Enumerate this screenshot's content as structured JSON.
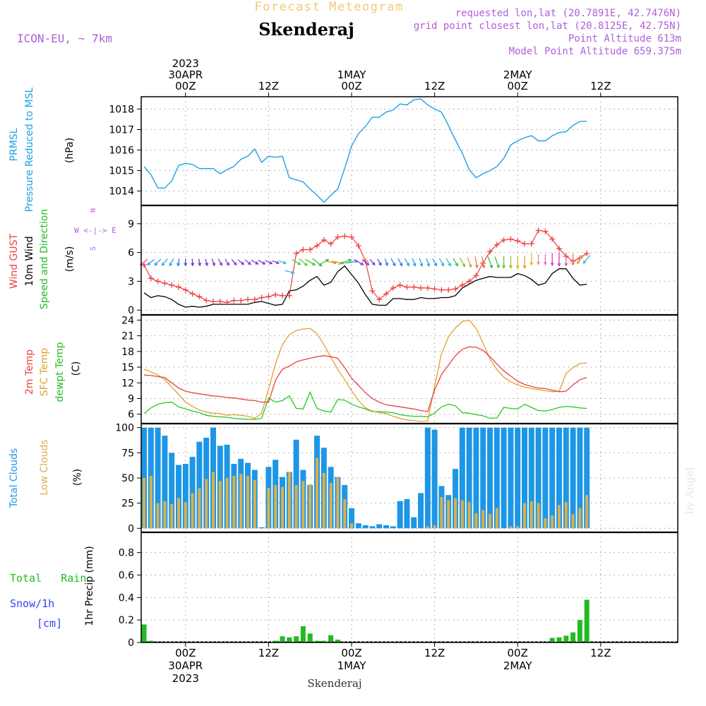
{
  "header": {
    "subtitle": "Forecast Meteogram",
    "location": "Skenderaj",
    "model": "ICON-EU, ~ 7km",
    "requested": "requested lon,lat (20.7891E, 42.7476N)",
    "gridpoint": "grid point closest lon,lat (20.8125E, 42.75N)",
    "point_altitude": "Point Altitude 613m",
    "model_altitude": "Model Point Altitude 659.375m",
    "footer_location": "Skenderaj",
    "watermark": "by Angel"
  },
  "colors": {
    "pressure": "#1ea0e6",
    "gust": "#ee4040",
    "wind": "#000000",
    "temp2m": "#ee4040",
    "sfc_temp": "#e0a030",
    "dewpt": "#22cc22",
    "total_clouds": "#1e96e6",
    "low_clouds": "#d8b050",
    "rain": "#22bb22",
    "snow": "#3344ee",
    "header_purple": "#b060d8",
    "header_orange": "#f4c878"
  },
  "chart_data": {
    "type": "meteogram",
    "x": {
      "start": "2023-04-29T18Z",
      "step_hours": 1,
      "count": 65,
      "top_ticks": [
        {
          "hour": 6,
          "lines": [
            "2023",
            "30APR",
            "00Z"
          ]
        },
        {
          "hour": 18,
          "lines": [
            "12Z"
          ]
        },
        {
          "hour": 30,
          "lines": [
            "1MAY",
            "00Z"
          ]
        },
        {
          "hour": 42,
          "lines": [
            "12Z"
          ]
        },
        {
          "hour": 54,
          "lines": [
            "2MAY",
            "00Z"
          ]
        },
        {
          "hour": 66,
          "lines": [
            "12Z"
          ]
        }
      ],
      "bottom_ticks": [
        {
          "hour": 6,
          "lines": [
            "00Z",
            "30APR",
            "2023"
          ]
        },
        {
          "hour": 18,
          "lines": [
            "12Z"
          ]
        },
        {
          "hour": 30,
          "lines": [
            "00Z",
            "1MAY"
          ]
        },
        {
          "hour": 42,
          "lines": [
            "12Z"
          ]
        },
        {
          "hour": 54,
          "lines": [
            "00Z",
            "2MAY"
          ]
        },
        {
          "hour": 66,
          "lines": [
            "12Z"
          ]
        }
      ]
    },
    "pressure": {
      "label_lines": [
        "PRMSL",
        "Pressure Reduced to MSL"
      ],
      "unit": "(hPa)",
      "yticks": [
        "1014",
        "1015",
        "1016",
        "1017",
        "1018"
      ],
      "ylim": [
        1013.3,
        1018.6
      ],
      "values": [
        1015.2,
        1014.8,
        1014.15,
        1014.15,
        1014.5,
        1015.25,
        1015.35,
        1015.3,
        1015.1,
        1015.1,
        1015.1,
        1014.85,
        1015.05,
        1015.2,
        1015.55,
        1015.7,
        1016.05,
        1015.4,
        1015.7,
        1015.65,
        1015.7,
        1014.65,
        1014.55,
        1014.45,
        1014.1,
        1013.8,
        1013.45,
        1013.8,
        1014.1,
        1015.1,
        1016.2,
        1016.8,
        1017.15,
        1017.6,
        1017.6,
        1017.85,
        1017.95,
        1018.25,
        1018.2,
        1018.45,
        1018.5,
        1018.2,
        1018.0,
        1017.85,
        1017.2,
        1016.5,
        1015.85,
        1015.05,
        1014.65,
        1014.85,
        1015.0,
        1015.2,
        1015.6,
        1016.25,
        1016.45,
        1016.6,
        1016.7,
        1016.45,
        1016.45,
        1016.7,
        1016.85,
        1016.9,
        1017.2,
        1017.4,
        1017.4
      ]
    },
    "wind": {
      "label_gust": "Wind GUST",
      "label_wind": "10m Wind",
      "label_dir": "Speed and Direction",
      "unit": "(m/s)",
      "compass": [
        "N",
        "W <-|-> E",
        "S"
      ],
      "yticks": [
        "0",
        "3",
        "6",
        "9"
      ],
      "ylim": [
        -0.5,
        10.9
      ],
      "gust": [
        4.7,
        3.3,
        3.0,
        2.8,
        2.6,
        2.4,
        2.1,
        1.7,
        1.4,
        1.0,
        0.9,
        0.9,
        0.8,
        1.0,
        1.0,
        1.1,
        1.1,
        1.3,
        1.4,
        1.6,
        1.5,
        1.5,
        5.9,
        6.3,
        6.3,
        6.7,
        7.3,
        6.9,
        7.6,
        7.7,
        7.6,
        6.7,
        5.1,
        2.0,
        1.1,
        1.7,
        2.3,
        2.6,
        2.4,
        2.4,
        2.3,
        2.3,
        2.2,
        2.1,
        2.1,
        2.2,
        2.6,
        3.0,
        3.6,
        4.9,
        6.1,
        6.8,
        7.3,
        7.4,
        7.2,
        6.9,
        6.9,
        8.3,
        8.2,
        7.4,
        6.4,
        5.6,
        5.1,
        5.4,
        5.9
      ],
      "speed": [
        1.8,
        1.3,
        1.5,
        1.4,
        1.1,
        0.6,
        0.3,
        0.4,
        0.3,
        0.4,
        0.6,
        0.6,
        0.6,
        0.6,
        0.6,
        0.6,
        0.8,
        0.9,
        0.7,
        0.5,
        0.6,
        2.0,
        2.1,
        2.5,
        3.1,
        3.5,
        2.6,
        2.9,
        4.0,
        4.6,
        3.7,
        2.8,
        1.6,
        0.6,
        0.5,
        0.5,
        1.2,
        1.2,
        1.1,
        1.1,
        1.3,
        1.2,
        1.2,
        1.3,
        1.3,
        1.5,
        2.3,
        2.7,
        3.1,
        3.3,
        3.5,
        3.4,
        3.4,
        3.4,
        3.8,
        3.6,
        3.2,
        2.6,
        2.8,
        3.8,
        4.3,
        4.3,
        3.3,
        2.6,
        2.7
      ],
      "arrow_dir": [
        220,
        220,
        225,
        230,
        240,
        260,
        270,
        275,
        280,
        285,
        290,
        300,
        300,
        310,
        320,
        320,
        330,
        330,
        335,
        340,
        340,
        345,
        330,
        320,
        330,
        320,
        30,
        350,
        350,
        20,
        10,
        330,
        320,
        310,
        300,
        290,
        300,
        300,
        300,
        290,
        290,
        290,
        300,
        300,
        300,
        300,
        300,
        290,
        280,
        280,
        290,
        290,
        270,
        270,
        270,
        270,
        270,
        270,
        270,
        270,
        270,
        270,
        270,
        240,
        230
      ],
      "arrow_color": [
        "#e050a0",
        "#30a0f0",
        "#30a0f0",
        "#30b0f0",
        "#30a0f0",
        "#3080f0",
        "#4050e0",
        "#6040d0",
        "#7040d0",
        "#8040d0",
        "#8040d0",
        "#8040d0",
        "#8040d0",
        "#8040d0",
        "#8040d0",
        "#8040d0",
        "#8040d0",
        "#8040d0",
        "#8040d0",
        "#8040d0",
        "#30c0c0",
        "#30c0e0",
        "#40d040",
        "#60d020",
        "#40c040",
        "#30c040",
        "#40c040",
        "#e09030",
        "#e0a030",
        "#30c040",
        "#30a0f0",
        "#8040d0",
        "#8040d0",
        "#8040d0",
        "#4050e0",
        "#3080f0",
        "#3080f0",
        "#3080f0",
        "#30a0f0",
        "#30a0f0",
        "#30a0f0",
        "#30a0f0",
        "#30a0f0",
        "#30b0f0",
        "#30c0c0",
        "#40c040",
        "#80c040",
        "#e0a030",
        "#e08040",
        "#e08040",
        "#40c040",
        "#40c040",
        "#60c030",
        "#a0c030",
        "#e0b030",
        "#e0a030",
        "#e0b030",
        "#e090a0",
        "#e070c0",
        "#d040c0",
        "#d040c0",
        "#e060a0",
        "#e08060",
        "#e0a040",
        "#30c0e0"
      ]
    },
    "temperature": {
      "label_2m": "2m Temp",
      "label_sfc": "SFC Temp",
      "label_dew": "dewpt Temp",
      "unit": "(C)",
      "yticks": [
        "6",
        "9",
        "12",
        "15",
        "18",
        "21",
        "24"
      ],
      "ylim": [
        4.2,
        25.0
      ],
      "temp2m": [
        13.5,
        13.4,
        13.2,
        13.0,
        12.0,
        11.0,
        10.4,
        10.1,
        9.9,
        9.7,
        9.5,
        9.4,
        9.2,
        9.1,
        8.9,
        8.7,
        8.6,
        8.3,
        8.3,
        12.5,
        14.6,
        15.2,
        16.0,
        16.4,
        16.7,
        17.0,
        17.2,
        17.0,
        16.7,
        14.9,
        12.9,
        11.5,
        10.1,
        9.0,
        8.3,
        7.8,
        7.6,
        7.4,
        7.2,
        7.0,
        6.7,
        6.5,
        10.6,
        13.6,
        15.4,
        17.2,
        18.4,
        18.9,
        18.8,
        18.2,
        17.0,
        15.6,
        14.3,
        13.3,
        12.3,
        11.7,
        11.3,
        11.0,
        10.9,
        10.6,
        10.3,
        10.4,
        11.6,
        12.6,
        13.0
      ],
      "sfc_temp": [
        14.6,
        14.1,
        13.5,
        12.6,
        11.2,
        9.8,
        8.3,
        7.5,
        6.8,
        6.4,
        6.2,
        6.1,
        5.8,
        5.9,
        5.8,
        5.6,
        5.2,
        6.2,
        10.8,
        15.6,
        19.3,
        21.2,
        22.0,
        22.3,
        22.4,
        21.4,
        19.3,
        16.9,
        14.6,
        12.6,
        10.5,
        8.6,
        7.2,
        6.6,
        6.3,
        6.1,
        5.6,
        5.2,
        4.9,
        4.8,
        4.6,
        4.7,
        11.4,
        17.6,
        20.8,
        22.5,
        23.7,
        24.0,
        22.4,
        19.6,
        16.6,
        14.5,
        13.1,
        12.2,
        11.6,
        11.2,
        10.9,
        10.7,
        10.5,
        10.3,
        10.4,
        13.8,
        14.9,
        15.7,
        15.8
      ],
      "dewpt": [
        6.1,
        7.2,
        7.9,
        8.2,
        8.3,
        7.4,
        7.0,
        6.6,
        6.3,
        5.8,
        5.6,
        5.5,
        5.4,
        5.2,
        5.1,
        5.0,
        5.0,
        5.2,
        9.1,
        8.3,
        8.6,
        9.5,
        7.1,
        7.0,
        10.2,
        7.1,
        6.6,
        6.4,
        8.8,
        8.7,
        7.9,
        7.4,
        7.0,
        6.5,
        6.5,
        6.4,
        6.3,
        5.9,
        5.7,
        5.6,
        5.6,
        5.5,
        6.2,
        7.4,
        7.9,
        7.6,
        6.3,
        6.2,
        5.9,
        5.7,
        5.2,
        5.3,
        7.3,
        7.1,
        7.0,
        7.9,
        7.3,
        6.7,
        6.6,
        6.9,
        7.3,
        7.5,
        7.4,
        7.2,
        7.1
      ]
    },
    "clouds": {
      "label_total": "Total Clouds",
      "label_low": "Low Clouds",
      "unit": "(%)",
      "yticks": [
        "0",
        "25",
        "50",
        "75",
        "100"
      ],
      "ylim": [
        -4,
        104
      ],
      "total": [
        100,
        100,
        100,
        92,
        75,
        63,
        64,
        71,
        86,
        90,
        100,
        82,
        83,
        64,
        69,
        65,
        58,
        1,
        61,
        68,
        51,
        56,
        88,
        58,
        43,
        92,
        80,
        61,
        51,
        43,
        20,
        5,
        3,
        2,
        4,
        3,
        2,
        27,
        29,
        11,
        35,
        100,
        98,
        42,
        33,
        59,
        100,
        100,
        100,
        100,
        100,
        100,
        100,
        100,
        100,
        100,
        100,
        100,
        100,
        100,
        100,
        100,
        100,
        100,
        100
      ],
      "low": [
        50,
        52,
        25,
        27,
        24,
        30,
        26,
        35,
        40,
        49,
        56,
        47,
        50,
        52,
        54,
        52,
        48,
        0,
        40,
        43,
        41,
        56,
        43,
        47,
        44,
        70,
        55,
        45,
        51,
        29,
        5,
        0,
        0,
        0,
        0,
        0,
        0,
        0,
        0,
        0,
        0,
        2,
        3,
        31,
        28,
        30,
        28,
        26,
        15,
        18,
        14,
        20,
        0,
        2,
        2,
        25,
        27,
        25,
        10,
        13,
        23,
        26,
        14,
        20,
        33
      ]
    },
    "precip": {
      "label": "1hr Precip (mm)",
      "label_rain": "Total   Rain",
      "label_snow": "Snow/1h",
      "label_snow_unit": "[cm]",
      "yticks": [
        "0",
        "0.2",
        "0.4",
        "0.6",
        "0.8"
      ],
      "ylim": [
        0,
        0.98
      ],
      "rain": [
        0.16,
        0.015,
        0,
        0,
        0,
        0,
        0,
        0,
        0,
        0,
        0,
        0,
        0,
        0,
        0,
        0,
        0,
        0,
        0,
        0.015,
        0.055,
        0.045,
        0.055,
        0.145,
        0.08,
        0.015,
        0.015,
        0.065,
        0.025,
        0,
        0,
        0,
        0,
        0,
        0,
        0,
        0,
        0,
        0,
        0,
        0,
        0,
        0,
        0,
        0,
        0,
        0,
        0,
        0,
        0,
        0,
        0,
        0,
        0,
        0,
        0,
        0,
        0,
        0,
        0.04,
        0.045,
        0.06,
        0.09,
        0.2,
        0.38
      ]
    }
  }
}
